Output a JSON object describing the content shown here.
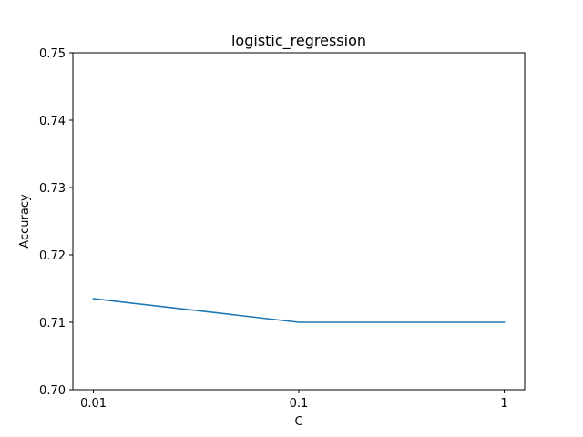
{
  "chart_data": {
    "type": "line",
    "title": "logistic_regression",
    "xlabel": "C",
    "ylabel": "Accuracy",
    "x": [
      "0.01",
      "0.1",
      "1"
    ],
    "series": [
      {
        "values": [
          0.7135,
          0.71,
          0.71
        ]
      }
    ],
    "ylim": [
      0.7,
      0.75
    ],
    "yticks": [
      "0.70",
      "0.71",
      "0.72",
      "0.73",
      "0.74",
      "0.75"
    ],
    "xaxis_scale": "categorical (evenly spaced)",
    "grid": false,
    "line_color": "#1f77b4"
  }
}
